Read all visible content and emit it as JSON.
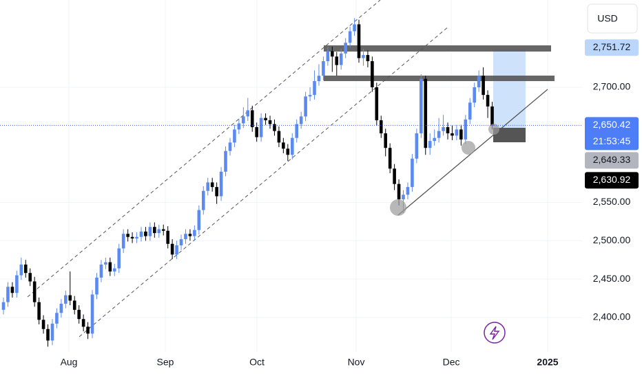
{
  "chart_data": {
    "type": "candlestick",
    "currency": "USD",
    "up_color": "#5b8af0",
    "down_color": "#000000",
    "xlim": [
      -0.78,
      130.23
    ],
    "ylim": [
      2355.2,
      2813.7
    ],
    "xticks": [
      {
        "value": 14.73,
        "label": "Aug"
      },
      {
        "value": 36.43,
        "label": "Sep"
      },
      {
        "value": 57.05,
        "label": "Oct"
      },
      {
        "value": 79.38,
        "label": "Nov"
      },
      {
        "value": 100.78,
        "label": "Dec"
      },
      {
        "value": 122.48,
        "label": "2025"
      }
    ],
    "yticks": [
      {
        "value": 2400,
        "label": "2,400.00"
      },
      {
        "value": 2450,
        "label": "2,450.00"
      },
      {
        "value": 2500,
        "label": "2,500.00"
      },
      {
        "value": 2550,
        "label": "2,550.00"
      },
      {
        "value": 2700,
        "label": "2,700.00"
      }
    ],
    "grid": true,
    "current_price": {
      "value": 2650.42,
      "label": "2,650.42",
      "countdown": "21:53:45"
    },
    "price_labels": [
      {
        "value": 2751.72,
        "label": "2,751.72"
      },
      {
        "value": 2649.33,
        "label": "2,649.33"
      },
      {
        "value": 2630.92,
        "label": "2,630.92"
      }
    ],
    "open": [
      2410,
      2420,
      2440,
      2432,
      2455,
      2469,
      2458,
      2447,
      2420,
      2397,
      2385,
      2370,
      2392,
      2406,
      2418,
      2429,
      2422,
      2410,
      2398,
      2388,
      2379,
      2430,
      2452,
      2469,
      2472,
      2460,
      2464,
      2490,
      2509,
      2505,
      2503,
      2505,
      2512,
      2506,
      2518,
      2510,
      2515,
      2513,
      2496,
      2482,
      2494,
      2502,
      2509,
      2506,
      2514,
      2540,
      2565,
      2576,
      2570,
      2558,
      2590,
      2617,
      2628,
      2645,
      2653,
      2662,
      2670,
      2648,
      2635,
      2660,
      2657,
      2652,
      2643,
      2628,
      2620,
      2612,
      2634,
      2652,
      2662,
      2688,
      2690,
      2708,
      2715,
      2734,
      2747,
      2740,
      2729,
      2744,
      2758,
      2773,
      2782,
      2738,
      2742,
      2734,
      2700,
      2657,
      2640,
      2621,
      2594,
      2574,
      2554,
      2560,
      2570,
      2607,
      2640,
      2711,
      2621,
      2630,
      2634,
      2643,
      2648,
      2640,
      2637,
      2645,
      2632,
      2658,
      2680,
      2700,
      2715,
      2690,
      2675
    ],
    "high": [
      2426,
      2446,
      2446,
      2461,
      2478,
      2475,
      2464,
      2453,
      2426,
      2403,
      2391,
      2398,
      2412,
      2424,
      2435,
      2460,
      2428,
      2416,
      2404,
      2394,
      2436,
      2458,
      2475,
      2478,
      2478,
      2470,
      2496,
      2515,
      2515,
      2511,
      2511,
      2518,
      2518,
      2524,
      2524,
      2521,
      2521,
      2519,
      2502,
      2500,
      2508,
      2515,
      2515,
      2520,
      2546,
      2571,
      2582,
      2582,
      2576,
      2596,
      2623,
      2634,
      2651,
      2659,
      2674,
      2686,
      2676,
      2654,
      2666,
      2666,
      2663,
      2658,
      2649,
      2634,
      2626,
      2640,
      2658,
      2668,
      2694,
      2700,
      2722,
      2730,
      2740,
      2753,
      2753,
      2746,
      2750,
      2764,
      2779,
      2790,
      2788,
      2750,
      2748,
      2740,
      2706,
      2663,
      2646,
      2627,
      2600,
      2580,
      2566,
      2576,
      2613,
      2646,
      2717,
      2715,
      2640,
      2645,
      2660,
      2664,
      2654,
      2650,
      2651,
      2651,
      2664,
      2686,
      2706,
      2722,
      2726,
      2696,
      2681
    ],
    "low": [
      2404,
      2414,
      2426,
      2426,
      2449,
      2452,
      2441,
      2414,
      2391,
      2379,
      2362,
      2364,
      2386,
      2400,
      2412,
      2416,
      2404,
      2392,
      2382,
      2372,
      2373,
      2424,
      2446,
      2463,
      2454,
      2454,
      2458,
      2484,
      2499,
      2497,
      2497,
      2499,
      2500,
      2500,
      2504,
      2504,
      2507,
      2490,
      2476,
      2476,
      2488,
      2496,
      2500,
      2500,
      2508,
      2534,
      2559,
      2564,
      2548,
      2552,
      2584,
      2611,
      2622,
      2639,
      2647,
      2656,
      2642,
      2629,
      2629,
      2651,
      2646,
      2637,
      2622,
      2614,
      2604,
      2606,
      2628,
      2646,
      2656,
      2682,
      2684,
      2702,
      2709,
      2728,
      2720,
      2715,
      2723,
      2738,
      2752,
      2767,
      2732,
      2728,
      2726,
      2694,
      2650,
      2634,
      2610,
      2588,
      2566,
      2546,
      2536,
      2554,
      2564,
      2601,
      2634,
      2612,
      2612,
      2624,
      2628,
      2637,
      2632,
      2631,
      2631,
      2624,
      2626,
      2652,
      2674,
      2694,
      2684,
      2660,
      2645
    ],
    "close": [
      2420,
      2440,
      2432,
      2455,
      2469,
      2458,
      2447,
      2420,
      2397,
      2385,
      2370,
      2392,
      2406,
      2418,
      2429,
      2422,
      2410,
      2398,
      2388,
      2379,
      2430,
      2452,
      2469,
      2472,
      2460,
      2464,
      2490,
      2509,
      2505,
      2503,
      2505,
      2512,
      2506,
      2518,
      2510,
      2515,
      2513,
      2496,
      2482,
      2494,
      2502,
      2509,
      2506,
      2514,
      2540,
      2565,
      2576,
      2570,
      2558,
      2590,
      2617,
      2628,
      2645,
      2653,
      2662,
      2670,
      2648,
      2635,
      2660,
      2657,
      2652,
      2643,
      2628,
      2620,
      2612,
      2634,
      2652,
      2662,
      2688,
      2690,
      2708,
      2715,
      2734,
      2747,
      2740,
      2729,
      2744,
      2758,
      2773,
      2782,
      2738,
      2742,
      2734,
      2700,
      2657,
      2640,
      2621,
      2594,
      2574,
      2554,
      2560,
      2570,
      2607,
      2640,
      2711,
      2621,
      2630,
      2634,
      2643,
      2648,
      2640,
      2637,
      2645,
      2632,
      2658,
      2680,
      2700,
      2715,
      2690,
      2675,
      2650
    ]
  }
}
